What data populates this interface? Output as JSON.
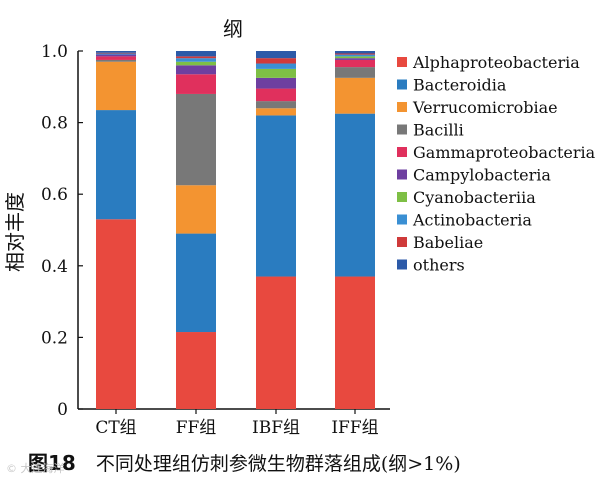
{
  "chart_data": {
    "type": "bar",
    "stacked": true,
    "title": "纲",
    "ylabel": "相对丰度",
    "xlabel": "",
    "ylim": [
      0,
      1.0
    ],
    "yticks": [
      "0",
      "0.2",
      "0.4",
      "0.6",
      "0.8",
      "1.0"
    ],
    "categories": [
      "CT组",
      "FF组",
      "IBF组",
      "IFF组"
    ],
    "series": [
      {
        "name": "Alphaproteobacteria",
        "color": "#e8493f",
        "values": [
          0.53,
          0.215,
          0.37,
          0.37
        ]
      },
      {
        "name": "Bacteroidia",
        "color": "#2a7cc0",
        "values": [
          0.305,
          0.275,
          0.45,
          0.455
        ]
      },
      {
        "name": "Verrucomicrobiae",
        "color": "#f39431",
        "values": [
          0.135,
          0.135,
          0.02,
          0.1
        ]
      },
      {
        "name": "Bacilli",
        "color": "#787878",
        "values": [
          0.005,
          0.255,
          0.02,
          0.03
        ]
      },
      {
        "name": "Gammaproteobacteria",
        "color": "#e0305d",
        "values": [
          0.01,
          0.055,
          0.035,
          0.02
        ]
      },
      {
        "name": "Campylobacteria",
        "color": "#6e3fa0",
        "values": [
          0.005,
          0.025,
          0.03,
          0.005
        ]
      },
      {
        "name": "Cyanobacteriia",
        "color": "#7ebf45",
        "values": [
          0.0,
          0.01,
          0.025,
          0.005
        ]
      },
      {
        "name": "Actinobacteria",
        "color": "#3a8fd3",
        "values": [
          0.003,
          0.01,
          0.015,
          0.005
        ]
      },
      {
        "name": "Babeliae",
        "color": "#cf3a3a",
        "values": [
          0.002,
          0.005,
          0.015,
          0.003
        ]
      },
      {
        "name": "others",
        "color": "#2c5aa8",
        "values": [
          0.005,
          0.015,
          0.02,
          0.007
        ]
      }
    ]
  },
  "caption": {
    "number": "图18",
    "text": "不同处理组仿刺参微生物群落组成(纲>1%)"
  },
  "watermark": "© 大连海洋"
}
